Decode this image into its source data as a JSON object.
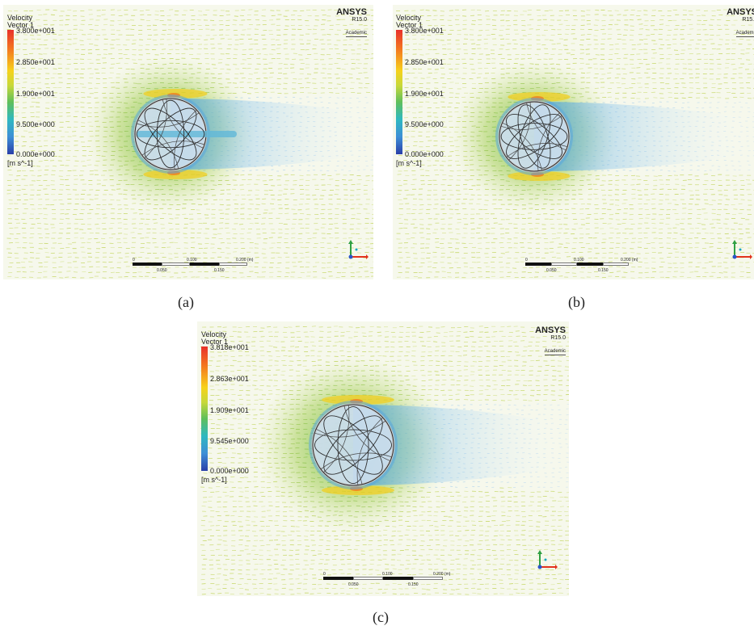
{
  "colors": {
    "background": "#f6f8ec",
    "flow_green": "#b6cc3c",
    "flow_yellow": "#f1cf22",
    "wake_blue": "#9cc6e6",
    "stent_dark": "#2a2a2a"
  },
  "panels": [
    {
      "id": "a",
      "caption": "(a)",
      "legend": {
        "title": "Velocity",
        "subtitle": "Vector 1",
        "ticks": [
          "3.800e+001",
          "2.850e+001",
          "1.900e+001",
          "9.500e+000",
          "0.000e+000"
        ],
        "unit": "[m s^-1]"
      },
      "watermark": {
        "brand": "ANSYS",
        "version": "R15.0",
        "edition": "Academic"
      },
      "scale": {
        "ticks_top": [
          "0",
          "0.100",
          "0.200 (m)"
        ],
        "ticks_bottom": [
          "0.050",
          "0.150"
        ]
      },
      "axis_icon": "xyz-triad-icon"
    },
    {
      "id": "b",
      "caption": "(b)",
      "legend": {
        "title": "Velocity",
        "subtitle": "Vector 1",
        "ticks": [
          "3.800e+001",
          "2.850e+001",
          "1.900e+001",
          "9.500e+000",
          "0.000e+000"
        ],
        "unit": "[m s^-1]"
      },
      "watermark": {
        "brand": "ANSYS",
        "version": "R15.0",
        "edition": "Academic"
      },
      "scale": {
        "ticks_top": [
          "0",
          "0.100",
          "0.200 (m)"
        ],
        "ticks_bottom": [
          "0.050",
          "0.150"
        ]
      },
      "axis_icon": "xyz-triad-icon"
    },
    {
      "id": "c",
      "caption": "(c)",
      "legend": {
        "title": "Velocity",
        "subtitle": "Vector 1",
        "ticks": [
          "3.818e+001",
          "2.863e+001",
          "1.909e+001",
          "9.545e+000",
          "0.000e+000"
        ],
        "unit": "[m s^-1]"
      },
      "watermark": {
        "brand": "ANSYS",
        "version": "R15.0",
        "edition": "Academic"
      },
      "scale": {
        "ticks_top": [
          "0",
          "0.100",
          "0.200 (m)"
        ],
        "ticks_bottom": [
          "0.050",
          "0.150"
        ]
      },
      "axis_icon": "xyz-triad-icon"
    }
  ]
}
